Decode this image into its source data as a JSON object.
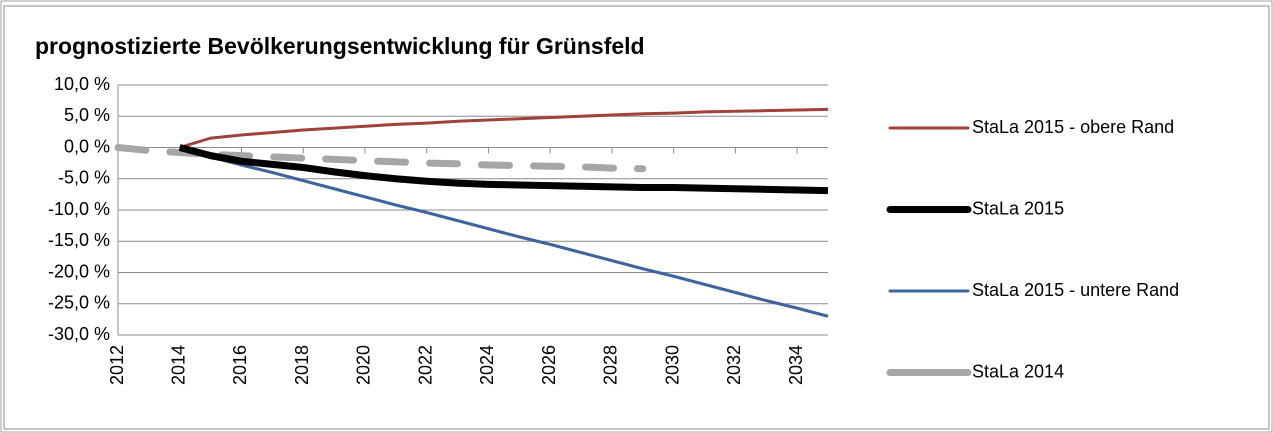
{
  "chart_data": {
    "type": "line",
    "title": "prognostizierte Bevölkerungsentwicklung für Grünsfeld",
    "xlim": [
      2012,
      2035
    ],
    "xticks": [
      2012,
      2014,
      2016,
      2018,
      2020,
      2022,
      2024,
      2026,
      2028,
      2030,
      2032,
      2034
    ],
    "ylim": [
      -30,
      10
    ],
    "yticks": [
      {
        "value": 10,
        "label": "10,0 %"
      },
      {
        "value": 5,
        "label": "5,0 %"
      },
      {
        "value": 0,
        "label": "0,0 %"
      },
      {
        "value": -5,
        "label": "-5,0 %"
      },
      {
        "value": -10,
        "label": "-10,0 %"
      },
      {
        "value": -15,
        "label": "-15,0 %"
      },
      {
        "value": -20,
        "label": "-20,0 %"
      },
      {
        "value": -25,
        "label": "-25,0 %"
      },
      {
        "value": -30,
        "label": "-30,0 %"
      }
    ],
    "grid": true,
    "legend": "right",
    "series": [
      {
        "name": "StaLa 2015 - obere Rand",
        "color": "#a0413c",
        "width": 3,
        "dashed": false,
        "x": [
          2014,
          2015,
          2016,
          2017,
          2018,
          2019,
          2020,
          2021,
          2022,
          2023,
          2024,
          2025,
          2026,
          2027,
          2028,
          2029,
          2030,
          2031,
          2032,
          2033,
          2034,
          2035
        ],
        "values": [
          0,
          1.5,
          2.0,
          2.4,
          2.8,
          3.1,
          3.4,
          3.7,
          3.9,
          4.2,
          4.4,
          4.6,
          4.8,
          5.0,
          5.2,
          5.4,
          5.5,
          5.7,
          5.8,
          5.9,
          6.0,
          6.1
        ]
      },
      {
        "name": "StaLa 2015",
        "color": "#000000",
        "width": 7,
        "dashed": false,
        "x": [
          2014,
          2015,
          2016,
          2017,
          2018,
          2019,
          2020,
          2021,
          2022,
          2023,
          2024,
          2025,
          2026,
          2027,
          2028,
          2029,
          2030,
          2031,
          2032,
          2033,
          2034,
          2035
        ],
        "values": [
          0,
          -1.3,
          -2.2,
          -2.7,
          -3.2,
          -3.9,
          -4.5,
          -5.0,
          -5.4,
          -5.7,
          -5.9,
          -6.0,
          -6.1,
          -6.2,
          -6.3,
          -6.4,
          -6.4,
          -6.5,
          -6.6,
          -6.7,
          -6.8,
          -6.9
        ]
      },
      {
        "name": "StaLa 2015 - untere Rand",
        "color": "#3e64a0",
        "width": 3,
        "dashed": false,
        "x": [
          2014,
          2015,
          2016,
          2017,
          2018,
          2019,
          2020,
          2021,
          2022,
          2023,
          2024,
          2025,
          2026,
          2027,
          2028,
          2029,
          2030,
          2031,
          2032,
          2033,
          2034,
          2035
        ],
        "values": [
          0,
          -1.5,
          -2.8,
          -4.0,
          -5.3,
          -6.6,
          -7.9,
          -9.2,
          -10.4,
          -11.7,
          -13.0,
          -14.3,
          -15.5,
          -16.8,
          -18.1,
          -19.4,
          -20.6,
          -21.9,
          -23.2,
          -24.5,
          -25.7,
          -27.0
        ]
      },
      {
        "name": "StaLa 2014",
        "color": "#a6a6a6",
        "width": 7,
        "dashed": true,
        "x": [
          2012,
          2013,
          2014,
          2015,
          2016,
          2017,
          2018,
          2019,
          2020,
          2021,
          2022,
          2023,
          2024,
          2025,
          2026,
          2027,
          2028,
          2029
        ],
        "values": [
          0,
          -0.5,
          -0.8,
          -1.1,
          -1.3,
          -1.5,
          -1.7,
          -1.9,
          -2.1,
          -2.3,
          -2.5,
          -2.6,
          -2.8,
          -2.9,
          -3.0,
          -3.1,
          -3.3,
          -3.4
        ]
      }
    ]
  }
}
